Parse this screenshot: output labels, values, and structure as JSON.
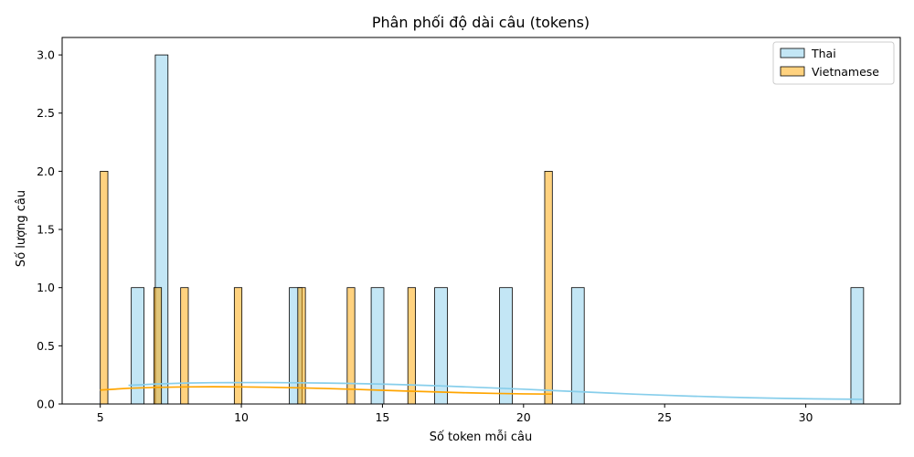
{
  "chart_data": {
    "type": "bar",
    "title": "Phân phối độ dài câu (tokens)",
    "xlabel": "Số token mỗi câu",
    "ylabel": "Số lượng câu",
    "xlim": [
      3.65,
      33.35
    ],
    "ylim": [
      0,
      3.15
    ],
    "xticks": [
      5,
      10,
      15,
      20,
      25,
      30
    ],
    "xtick_labels": [
      "5",
      "10",
      "15",
      "20",
      "25",
      "30"
    ],
    "yticks": [
      0,
      0.5,
      1.0,
      1.5,
      2.0,
      2.5,
      3.0
    ],
    "ytick_labels": [
      "0.0",
      "0.5",
      "1.0",
      "1.5",
      "2.0",
      "2.5",
      "3.0"
    ],
    "grid": false,
    "legend_position": "top-right",
    "series": [
      {
        "name": "Thai",
        "color": "#87CEEB",
        "bin_width": 0.45,
        "bins": [
          {
            "x0": 6.1,
            "value": 1
          },
          {
            "x0": 6.95,
            "value": 3
          },
          {
            "x0": 11.7,
            "value": 1
          },
          {
            "x0": 14.6,
            "value": 1
          },
          {
            "x0": 16.85,
            "value": 1
          },
          {
            "x0": 19.15,
            "value": 1
          },
          {
            "x0": 21.7,
            "value": 1
          },
          {
            "x0": 31.6,
            "value": 1
          }
        ],
        "kde": {
          "x": [
            6,
            7,
            8,
            9,
            10,
            11,
            12,
            13,
            14,
            15,
            16,
            17,
            18,
            19,
            20,
            21,
            22,
            23,
            24,
            25,
            26,
            27,
            28,
            29,
            30,
            31,
            32
          ],
          "y": [
            0.16,
            0.172,
            0.18,
            0.183,
            0.184,
            0.184,
            0.182,
            0.18,
            0.176,
            0.171,
            0.164,
            0.156,
            0.147,
            0.137,
            0.127,
            0.116,
            0.105,
            0.094,
            0.084,
            0.075,
            0.067,
            0.06,
            0.054,
            0.049,
            0.045,
            0.042,
            0.04
          ]
        }
      },
      {
        "name": "Vietnamese",
        "color": "#FFA500",
        "bin_width": 0.27,
        "bins": [
          {
            "x0": 5.0,
            "value": 2
          },
          {
            "x0": 6.9,
            "value": 1
          },
          {
            "x0": 7.85,
            "value": 1
          },
          {
            "x0": 9.75,
            "value": 1
          },
          {
            "x0": 12.0,
            "value": 1
          },
          {
            "x0": 13.75,
            "value": 1
          },
          {
            "x0": 15.9,
            "value": 1
          },
          {
            "x0": 20.75,
            "value": 2
          }
        ],
        "kde": {
          "x": [
            5,
            6,
            7,
            8,
            9,
            10,
            11,
            12,
            13,
            14,
            15,
            16,
            17,
            18,
            19,
            20,
            21
          ],
          "y": [
            0.12,
            0.135,
            0.143,
            0.147,
            0.148,
            0.147,
            0.144,
            0.139,
            0.133,
            0.126,
            0.118,
            0.11,
            0.103,
            0.096,
            0.091,
            0.087,
            0.085
          ]
        }
      }
    ]
  }
}
